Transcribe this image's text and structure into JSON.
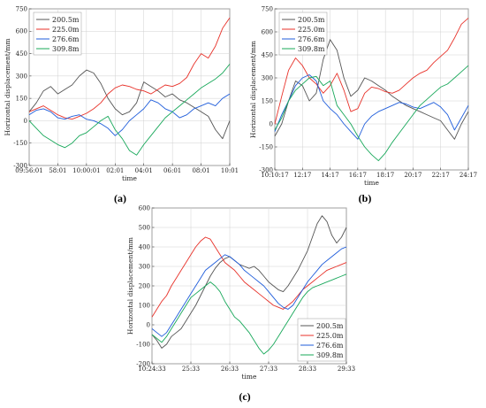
{
  "colors": {
    "200.5m": "#555555",
    "225.0m": "#e8322a",
    "276.6m": "#1f5ddb",
    "309.8m": "#18a85a"
  },
  "chart_data": [
    {
      "type": "line",
      "caption": "(a)",
      "xlabel": "time",
      "ylabel": "Horizontal displacement/mm",
      "ylim": [
        -300,
        750
      ],
      "yticks": [
        -300,
        -150,
        0,
        150,
        300,
        450,
        600,
        750
      ],
      "xticklabels": [
        "09:56:01",
        "58:01",
        "10:00:01",
        "02:01",
        "04:01",
        "06:01",
        "08:01",
        "10:01"
      ],
      "grid": true,
      "legend_position": "top-left",
      "x": [
        0,
        1,
        2,
        3,
        4,
        5,
        6,
        7,
        8,
        9,
        10,
        11,
        12,
        13,
        14,
        15,
        16,
        17,
        18,
        19,
        20,
        21,
        22,
        23,
        24,
        25,
        26,
        27,
        28
      ],
      "series": [
        {
          "name": "200.5m",
          "color": "#555555",
          "values": [
            60,
            120,
            200,
            230,
            180,
            210,
            240,
            300,
            340,
            320,
            250,
            150,
            80,
            40,
            60,
            120,
            260,
            230,
            200,
            160,
            180,
            140,
            120,
            90,
            60,
            30,
            -60,
            -120,
            0
          ]
        },
        {
          "name": "225.0m",
          "color": "#e8322a",
          "values": [
            60,
            80,
            100,
            70,
            40,
            20,
            10,
            30,
            50,
            80,
            120,
            180,
            220,
            240,
            230,
            210,
            200,
            180,
            210,
            240,
            230,
            250,
            290,
            380,
            450,
            420,
            500,
            620,
            690
          ]
        },
        {
          "name": "276.6m",
          "color": "#1f5ddb",
          "values": [
            40,
            70,
            80,
            60,
            20,
            10,
            30,
            40,
            10,
            0,
            -20,
            -50,
            -100,
            -60,
            0,
            40,
            80,
            140,
            120,
            80,
            60,
            20,
            40,
            80,
            100,
            120,
            100,
            150,
            180
          ]
        },
        {
          "name": "309.8m",
          "color": "#18a85a",
          "values": [
            0,
            -50,
            -100,
            -130,
            -160,
            -180,
            -150,
            -100,
            -80,
            -40,
            0,
            30,
            -60,
            -120,
            -200,
            -230,
            -160,
            -100,
            -40,
            20,
            60,
            100,
            140,
            180,
            220,
            250,
            280,
            320,
            380
          ]
        }
      ]
    },
    {
      "type": "line",
      "caption": "(b)",
      "xlabel": "time",
      "ylabel": "Horizontal displacement/mm",
      "ylim": [
        -300,
        750
      ],
      "yticks": [
        -300,
        -150,
        0,
        150,
        300,
        450,
        600,
        750
      ],
      "xticklabels": [
        "10:10:17",
        "12:17",
        "14:17",
        "16:17",
        "18:17",
        "20:17",
        "22:17",
        "24:17"
      ],
      "grid": true,
      "legend_position": "top-left",
      "x": [
        0,
        1,
        2,
        3,
        4,
        5,
        6,
        7,
        8,
        9,
        10,
        11,
        12,
        13,
        14,
        15,
        16,
        17,
        18,
        19,
        20,
        21,
        22,
        23,
        24,
        25,
        26,
        27,
        28
      ],
      "series": [
        {
          "name": "200.5m",
          "color": "#555555",
          "values": [
            -80,
            0,
            150,
            280,
            250,
            150,
            200,
            420,
            550,
            480,
            300,
            180,
            220,
            300,
            280,
            250,
            220,
            180,
            150,
            120,
            100,
            80,
            60,
            40,
            20,
            -40,
            -100,
            0,
            80
          ]
        },
        {
          "name": "225.0m",
          "color": "#e8322a",
          "values": [
            0,
            180,
            350,
            430,
            380,
            300,
            260,
            200,
            250,
            330,
            220,
            80,
            100,
            200,
            240,
            230,
            210,
            200,
            220,
            260,
            300,
            330,
            350,
            400,
            440,
            480,
            560,
            650,
            690
          ]
        },
        {
          "name": "276.6m",
          "color": "#1f5ddb",
          "values": [
            -50,
            60,
            150,
            250,
            300,
            320,
            280,
            150,
            100,
            60,
            0,
            -50,
            -100,
            0,
            50,
            80,
            100,
            120,
            140,
            130,
            110,
            100,
            120,
            140,
            110,
            60,
            -40,
            40,
            120
          ]
        },
        {
          "name": "309.8m",
          "color": "#18a85a",
          "values": [
            -40,
            40,
            150,
            220,
            260,
            300,
            310,
            250,
            280,
            120,
            60,
            0,
            -80,
            -150,
            -200,
            -240,
            -190,
            -120,
            -60,
            0,
            60,
            120,
            160,
            200,
            240,
            260,
            300,
            340,
            380
          ]
        }
      ]
    },
    {
      "type": "line",
      "caption": "(c)",
      "xlabel": "time",
      "ylabel": "Horizontal displacement/mm",
      "ylim": [
        -200,
        600
      ],
      "yticks": [
        -200,
        -100,
        0,
        100,
        200,
        300,
        400,
        500,
        600
      ],
      "xticklabels": [
        "10:24:33",
        "25:33",
        "26:33",
        "27:33",
        "28:33",
        "29:33"
      ],
      "grid": true,
      "legend_position": "bottom-right",
      "x": [
        0,
        1,
        2,
        3,
        4,
        5,
        6,
        7,
        8,
        9,
        10,
        11,
        12,
        13,
        14,
        15,
        16,
        17,
        18,
        19,
        20,
        21,
        22,
        23,
        24,
        25,
        26,
        27,
        28,
        29,
        30,
        31,
        32,
        33,
        34,
        35,
        36,
        37,
        38,
        39,
        40
      ],
      "series": [
        {
          "name": "200.5m",
          "color": "#555555",
          "values": [
            -50,
            -80,
            -120,
            -100,
            -60,
            -40,
            -20,
            20,
            60,
            100,
            150,
            200,
            250,
            290,
            320,
            340,
            350,
            330,
            310,
            300,
            290,
            300,
            280,
            250,
            220,
            200,
            180,
            170,
            200,
            240,
            280,
            330,
            380,
            450,
            520,
            560,
            530,
            460,
            420,
            450,
            500
          ]
        },
        {
          "name": "225.0m",
          "color": "#e8322a",
          "values": [
            40,
            80,
            120,
            150,
            200,
            240,
            280,
            320,
            360,
            400,
            430,
            450,
            440,
            400,
            360,
            320,
            300,
            280,
            250,
            220,
            200,
            180,
            160,
            140,
            120,
            100,
            90,
            80,
            100,
            120,
            150,
            180,
            200,
            220,
            240,
            260,
            280,
            290,
            300,
            310,
            320
          ]
        },
        {
          "name": "276.6m",
          "color": "#1f5ddb",
          "values": [
            -20,
            -40,
            -60,
            -40,
            0,
            40,
            80,
            120,
            160,
            200,
            240,
            280,
            300,
            320,
            340,
            360,
            350,
            330,
            310,
            280,
            260,
            240,
            220,
            200,
            170,
            140,
            110,
            90,
            80,
            100,
            140,
            180,
            220,
            250,
            280,
            310,
            330,
            350,
            370,
            390,
            400
          ]
        },
        {
          "name": "309.8m",
          "color": "#18a85a",
          "values": [
            -50,
            -70,
            -90,
            -60,
            -20,
            20,
            60,
            100,
            140,
            160,
            180,
            200,
            220,
            200,
            170,
            120,
            80,
            40,
            20,
            -10,
            -40,
            -80,
            -120,
            -150,
            -130,
            -100,
            -60,
            -20,
            20,
            60,
            100,
            140,
            170,
            190,
            200,
            210,
            220,
            230,
            240,
            250,
            260
          ]
        }
      ]
    }
  ]
}
